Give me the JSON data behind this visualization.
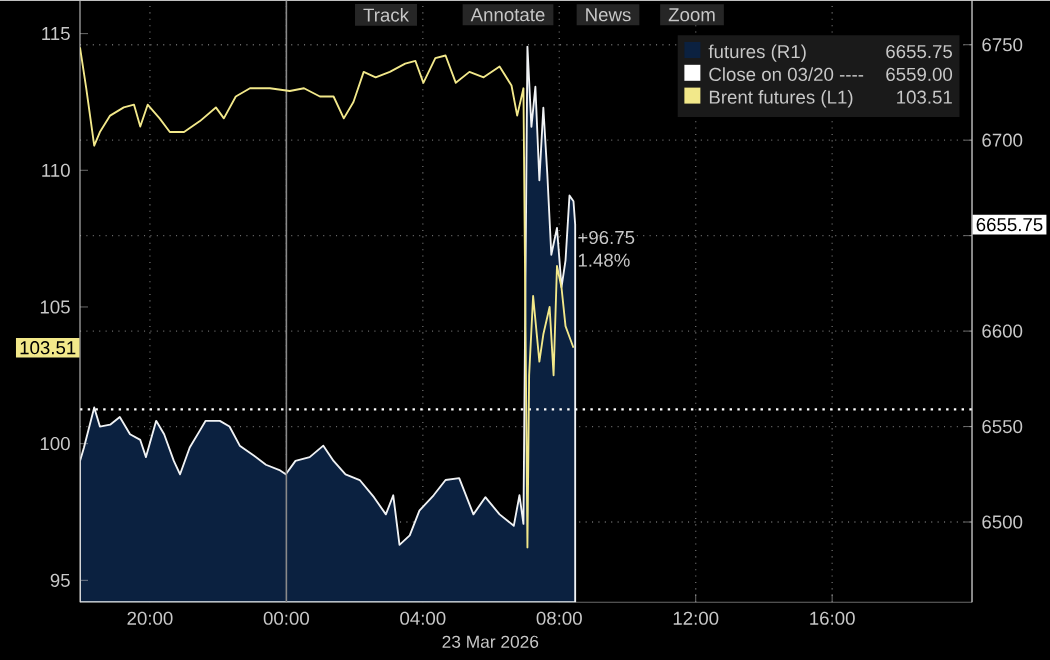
{
  "chart_data": {
    "type": "line",
    "xlabel": "23 Mar 2026",
    "xlim": [
      "2026-03-22T17:57",
      "2026-03-23T20:06"
    ],
    "xticks": [
      {
        "value": "2026-03-22T20:00",
        "label": "20:00"
      },
      {
        "value": "2026-03-23T00:00",
        "label": "00:00"
      },
      {
        "value": "2026-03-23T04:00",
        "label": "04:00"
      },
      {
        "value": "2026-03-23T08:00",
        "label": "08:00"
      },
      {
        "value": "2026-03-23T12:00",
        "label": "12:00"
      },
      {
        "value": "2026-03-23T16:00",
        "label": "16:00"
      }
    ],
    "ylim": [
      94.2,
      116.2
    ],
    "yticks": [
      95,
      100,
      105,
      110,
      115
    ],
    "y2lim": [
      6458,
      6773
    ],
    "y2ticks": [
      6500,
      6550,
      6600,
      {
        "value": 6650,
        "label": null
      },
      6700,
      6750
    ],
    "grid": true,
    "legend": "top right",
    "line_style": "solid",
    "marker": "none",
    "series": [
      {
        "name": "futures (R1)",
        "type": "area",
        "axis": "y2",
        "color": "#0b2140",
        "x": [
          "2026-03-22T17:57",
          "2026-03-22T18:04",
          "2026-03-22T18:22",
          "2026-03-22T18:32",
          "2026-03-22T18:50",
          "2026-03-22T19:07",
          "2026-03-22T19:25",
          "2026-03-22T19:43",
          "2026-03-22T19:53",
          "2026-03-22T20:11",
          "2026-03-22T20:25",
          "2026-03-22T20:42",
          "2026-03-22T20:53",
          "2026-03-22T21:10",
          "2026-03-22T21:28",
          "2026-03-22T21:38",
          "2026-03-22T22:03",
          "2026-03-22T22:20",
          "2026-03-22T22:38",
          "2026-03-22T23:02",
          "2026-03-22T23:24",
          "2026-03-22T23:49",
          "2026-03-22T23:59",
          "2026-03-23T00:16",
          "2026-03-23T00:41",
          "2026-03-23T01:05",
          "2026-03-23T01:23",
          "2026-03-23T01:44",
          "2026-03-23T02:09",
          "2026-03-23T02:34",
          "2026-03-23T02:55",
          "2026-03-23T03:08",
          "2026-03-23T03:19",
          "2026-03-23T03:37",
          "2026-03-23T03:54",
          "2026-03-23T04:19",
          "2026-03-23T04:40",
          "2026-03-23T05:04",
          "2026-03-23T05:29",
          "2026-03-23T05:50",
          "2026-03-23T06:15",
          "2026-03-23T06:40",
          "2026-03-23T06:50",
          "2026-03-23T06:57",
          "2026-03-23T07:04",
          "2026-03-23T07:11",
          "2026-03-23T07:18",
          "2026-03-23T07:25",
          "2026-03-23T07:32",
          "2026-03-23T07:39",
          "2026-03-23T07:46",
          "2026-03-23T07:56",
          "2026-03-23T08:04",
          "2026-03-23T08:11",
          "2026-03-23T08:18",
          "2026-03-23T08:25",
          "2026-03-23T08:28"
        ],
        "values": [
          6532,
          6539,
          6560,
          6550,
          6551,
          6555,
          6546,
          6543,
          6534,
          6553,
          6546,
          6532,
          6525,
          6539,
          6548,
          6553,
          6553,
          6550,
          6540,
          6535,
          6530,
          6527,
          6525,
          6532,
          6534,
          6540,
          6532,
          6525,
          6522,
          6513,
          6504,
          6514,
          6488,
          6493,
          6506,
          6514,
          6522,
          6523,
          6504,
          6513,
          6504,
          6498,
          6514,
          6499,
          6749,
          6707,
          6728,
          6679,
          6717,
          6682,
          6640,
          6654,
          6623,
          6637,
          6671,
          6668,
          6655.75
        ]
      },
      {
        "name": "Brent futures (L1)",
        "axis": "y",
        "color": "#f2e88a",
        "x": [
          "2026-03-22T17:57",
          "2026-03-22T18:08",
          "2026-03-22T18:22",
          "2026-03-22T18:32",
          "2026-03-22T18:50",
          "2026-03-22T19:14",
          "2026-03-22T19:32",
          "2026-03-22T19:43",
          "2026-03-22T19:56",
          "2026-03-22T20:17",
          "2026-03-22T20:35",
          "2026-03-22T21:00",
          "2026-03-22T21:28",
          "2026-03-22T21:56",
          "2026-03-22T22:10",
          "2026-03-22T22:31",
          "2026-03-22T22:56",
          "2026-03-22T23:31",
          "2026-03-23T00:06",
          "2026-03-23T00:31",
          "2026-03-23T00:59",
          "2026-03-23T01:23",
          "2026-03-23T01:41",
          "2026-03-23T01:58",
          "2026-03-23T02:16",
          "2026-03-23T02:37",
          "2026-03-23T03:02",
          "2026-03-23T03:29",
          "2026-03-23T03:47",
          "2026-03-23T04:01",
          "2026-03-23T04:22",
          "2026-03-23T04:40",
          "2026-03-23T04:58",
          "2026-03-23T05:22",
          "2026-03-23T05:47",
          "2026-03-23T06:15",
          "2026-03-23T06:36",
          "2026-03-23T06:46",
          "2026-03-23T06:57",
          "2026-03-23T07:04",
          "2026-03-23T07:07",
          "2026-03-23T07:14",
          "2026-03-23T07:25",
          "2026-03-23T07:32",
          "2026-03-23T07:43",
          "2026-03-23T07:50",
          "2026-03-23T07:56",
          "2026-03-23T08:04",
          "2026-03-23T08:11",
          "2026-03-23T08:18",
          "2026-03-23T08:25"
        ],
        "values": [
          114.5,
          113.0,
          110.9,
          111.4,
          112.0,
          112.3,
          112.4,
          111.6,
          112.4,
          111.9,
          111.4,
          111.4,
          111.8,
          112.3,
          111.9,
          112.7,
          113.0,
          113.0,
          112.9,
          113.0,
          112.7,
          112.7,
          111.9,
          112.5,
          113.6,
          113.4,
          113.6,
          113.9,
          114.0,
          113.2,
          114.1,
          114.2,
          113.2,
          113.6,
          113.4,
          113.8,
          113.1,
          112.0,
          113.0,
          96.2,
          102.5,
          105.4,
          103.0,
          104.0,
          105.0,
          102.5,
          106.5,
          105.7,
          104.3,
          103.9,
          103.51
        ]
      }
    ],
    "ref_lines": [
      {
        "axis": "y2",
        "value": 6559,
        "label": "Close on 03/20 ----",
        "color": "#ffffff",
        "line_style": "dotted"
      },
      {
        "axis": "x",
        "value": "2026-03-23T00:00",
        "color": "#8a8a8a",
        "line_style": "solid"
      }
    ],
    "annotations": [
      "Track",
      "Annotate",
      "News",
      "Zoom",
      "6655.75",
      "6559.00",
      "103.51",
      "6655.75",
      "103.51",
      "+96.75",
      "1.48%"
    ]
  }
}
